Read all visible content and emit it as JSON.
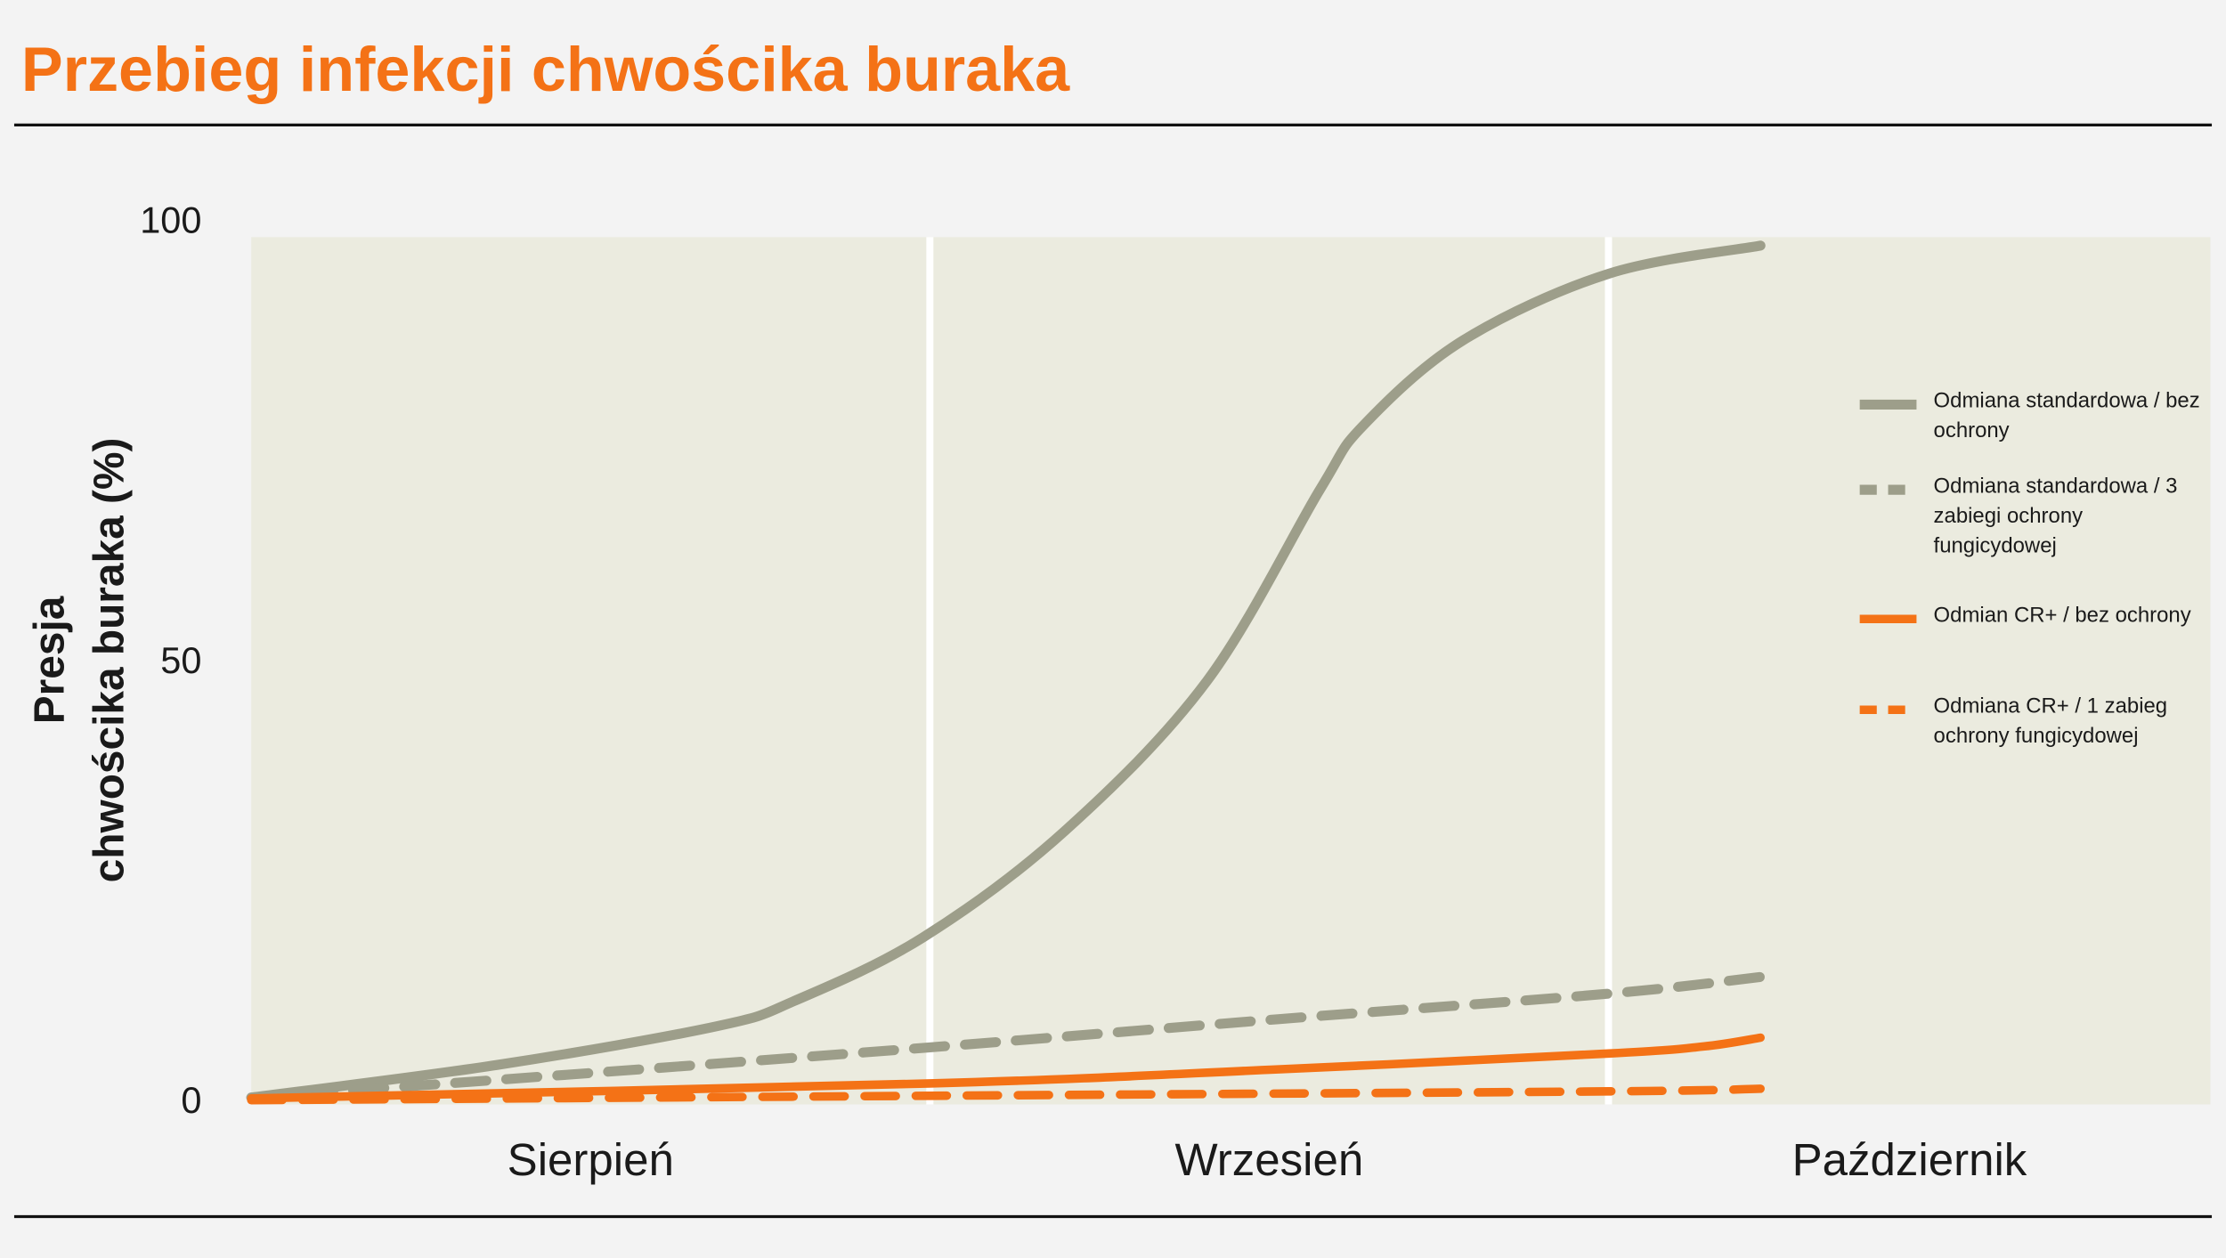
{
  "chart_data": {
    "type": "line",
    "title": "Przebieg infekcji chwościka buraka",
    "ylabel": [
      "Presja",
      "chwościka buraka (%)"
    ],
    "categories": [
      "Sierpień",
      "Wrzesień",
      "Październik"
    ],
    "xlim": [
      0,
      2.887
    ],
    "ylim": [
      0,
      100
    ],
    "yticks": [
      0,
      50,
      100
    ],
    "series": [
      {
        "name": "Odmiana standardowa / bez ochrony",
        "color": "#9d9e8a",
        "dashed": false,
        "x": [
          0,
          0.362,
          0.686,
          0.801,
          0.99,
          1.199,
          1.408,
          1.575,
          1.638,
          1.785,
          2.0,
          2.224
        ],
        "values": [
          0.3,
          4,
          8.4,
          11.3,
          18.5,
          30.6,
          47.6,
          69.4,
          76.6,
          86.3,
          93.9,
          97.1
        ]
      },
      {
        "name": "Odmiana standardowa / 3 zabiegi ochrony fungicydowej",
        "color": "#9d9e8a",
        "dashed": true,
        "x": [
          0,
          0.467,
          1.0,
          1.513,
          2.0,
          2.224
        ],
        "values": [
          0.3,
          2.9,
          6,
          9.2,
          12.1,
          14
        ]
      },
      {
        "name": "Odmian CR+ / bez ochrony",
        "color": "#f47216",
        "dashed": false,
        "x": [
          0,
          1.0,
          1.513,
          2.0,
          2.14,
          2.224
        ],
        "values": [
          0.2,
          1.9,
          3.5,
          5.3,
          6.1,
          7.1
        ]
      },
      {
        "name": "Odmiana CR+ / 1 zabieg ochrony fungicydowej",
        "color": "#f47216",
        "dashed": true,
        "x": [
          0,
          1.0,
          2.0,
          2.224
        ],
        "values": [
          0,
          0.5,
          1,
          1.3
        ]
      }
    ]
  }
}
